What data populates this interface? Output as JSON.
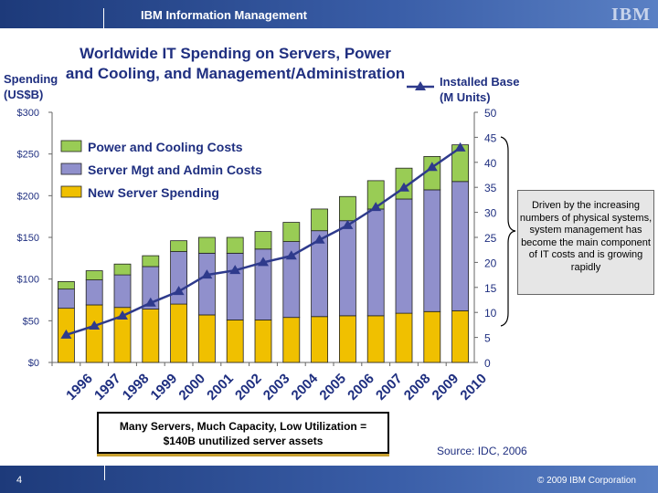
{
  "header": {
    "title": "IBM Information Management",
    "logo": "IBM"
  },
  "footer": {
    "page_number": "4",
    "copyright": "© 2009 IBM Corporation"
  },
  "note": "Driven by the increasing numbers of physical systems, system management has become the main component of IT costs and is growing rapidly",
  "callout": {
    "line1": "Many Servers, Much Capacity, Low Utilization =",
    "line2": "$140B unutilized server assets"
  },
  "source": "Source: IDC, 2006",
  "chart_data": {
    "type": "bar",
    "stacked": true,
    "title": "Worldwide IT Spending on Servers, Power and Cooling, and Management/Administration",
    "ylabel_line1": "Spending",
    "ylabel_line2": "(US$B)",
    "y2label_line1": "Installed Base",
    "y2label_line2": "(M Units)",
    "ylim": [
      0,
      300
    ],
    "y2lim": [
      0,
      50
    ],
    "yticks": [
      "$0",
      "$50",
      "$100",
      "$150",
      "$200",
      "$250",
      "$300"
    ],
    "y2ticks": [
      "0",
      "5",
      "10",
      "15",
      "20",
      "25",
      "30",
      "35",
      "40",
      "45",
      "50"
    ],
    "categories": [
      "1996",
      "1997",
      "1998",
      "1999",
      "2000",
      "2001",
      "2002",
      "2003",
      "2004",
      "2005",
      "2006",
      "2007",
      "2008",
      "2009",
      "2010"
    ],
    "legend_placement": "top-left",
    "series": [
      {
        "name": "New Server Spending",
        "color": "#f0c000",
        "values": [
          65,
          69,
          66,
          64,
          70,
          57,
          51,
          51,
          54,
          55,
          56,
          56,
          59,
          61,
          62
        ]
      },
      {
        "name": "Server Mgt and Admin Costs",
        "color": "#9090cc",
        "values": [
          23,
          30,
          39,
          51,
          63,
          74,
          80,
          85,
          91,
          103,
          114,
          128,
          137,
          146,
          155
        ]
      },
      {
        "name": "Power and Cooling Costs",
        "color": "#99cc55",
        "values": [
          9,
          11,
          13,
          13,
          13,
          19,
          19,
          21,
          23,
          26,
          29,
          34,
          37,
          40,
          44
        ]
      }
    ],
    "line_series": {
      "name": "Installed Base (M Units)",
      "axis": "right",
      "color": "#2e3a8c",
      "marker": "triangle",
      "values": [
        5.5,
        7.3,
        9.3,
        11.9,
        14.2,
        17.5,
        18.4,
        20,
        21.3,
        24.5,
        27.4,
        31,
        34.9,
        39,
        42.9
      ]
    }
  }
}
